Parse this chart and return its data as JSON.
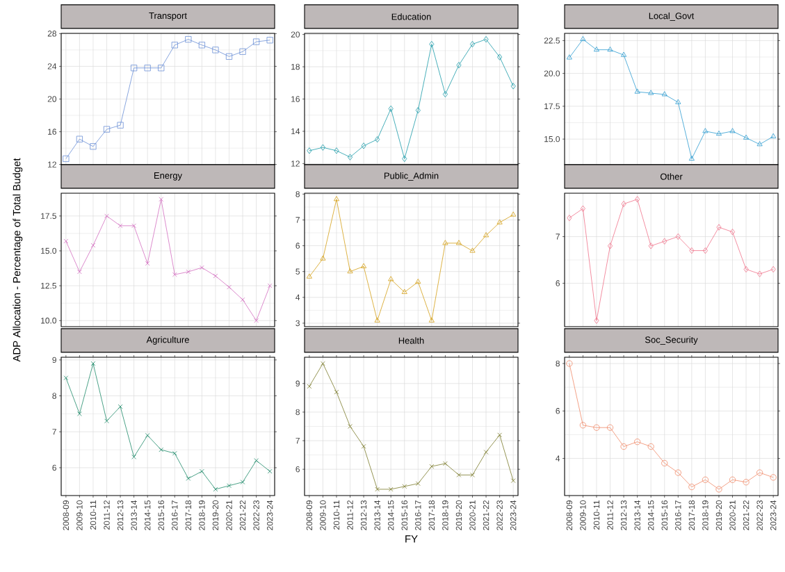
{
  "chart_data": [
    {
      "type": "line",
      "title": "Transport",
      "categories": [
        "2008-09",
        "2009-10",
        "2010-11",
        "2011-12",
        "2012-13",
        "2013-14",
        "2014-15",
        "2015-16",
        "2016-17",
        "2017-18",
        "2018-19",
        "2019-20",
        "2020-21",
        "2021-22",
        "2022-23",
        "2023-24"
      ],
      "values": [
        12.7,
        15.1,
        14.2,
        16.3,
        16.8,
        23.8,
        23.8,
        23.8,
        26.6,
        27.3,
        26.6,
        26.0,
        25.2,
        25.8,
        27.0,
        27.2
      ],
      "color": "#6b8fd6",
      "marker": "square",
      "ylim": [
        11.97,
        28.03
      ],
      "yticks": [
        12,
        16,
        20,
        24,
        28
      ],
      "grid": true,
      "tick_labels": "y"
    },
    {
      "type": "line",
      "title": "Education",
      "categories": [
        "2008-09",
        "2009-10",
        "2010-11",
        "2011-12",
        "2012-13",
        "2013-14",
        "2014-15",
        "2015-16",
        "2016-17",
        "2017-18",
        "2018-19",
        "2019-20",
        "2020-21",
        "2021-22",
        "2022-23",
        "2023-24"
      ],
      "values": [
        12.8,
        13.0,
        12.8,
        12.4,
        13.1,
        13.5,
        15.4,
        12.3,
        15.3,
        19.4,
        16.3,
        18.1,
        19.4,
        19.7,
        18.6,
        16.8
      ],
      "color": "#1a9ba8",
      "marker": "diamond",
      "ylim": [
        11.93,
        20.07
      ],
      "yticks": [
        12,
        14,
        16,
        18,
        20
      ],
      "grid": true,
      "tick_labels": "y"
    },
    {
      "type": "line",
      "title": "Local_Govt",
      "categories": [
        "2008-09",
        "2009-10",
        "2010-11",
        "2011-12",
        "2012-13",
        "2013-14",
        "2014-15",
        "2015-16",
        "2016-17",
        "2017-18",
        "2018-19",
        "2019-20",
        "2020-21",
        "2021-22",
        "2022-23",
        "2023-24"
      ],
      "values": [
        21.2,
        22.6,
        21.8,
        21.8,
        21.4,
        18.6,
        18.5,
        18.4,
        17.8,
        13.5,
        15.6,
        15.4,
        15.6,
        15.1,
        14.6,
        15.2
      ],
      "color": "#2d9cd0",
      "marker": "triangle",
      "ylim": [
        13.05,
        23.05
      ],
      "yticks": [
        {
          "value": 15,
          "label": "15.0"
        },
        17.5,
        {
          "value": 20,
          "label": "20.0"
        },
        22.5
      ],
      "grid": true,
      "tick_labels": "y"
    },
    {
      "type": "line",
      "title": "Energy",
      "ylabel": "ADP Allocation - Percentage of Total Budget",
      "categories": [
        "2008-09",
        "2009-10",
        "2010-11",
        "2011-12",
        "2012-13",
        "2013-14",
        "2014-15",
        "2015-16",
        "2016-17",
        "2017-18",
        "2018-19",
        "2019-20",
        "2020-21",
        "2021-22",
        "2022-23",
        "2023-24"
      ],
      "values": [
        15.7,
        13.5,
        15.4,
        17.5,
        16.8,
        16.8,
        14.1,
        18.7,
        13.3,
        13.5,
        13.8,
        13.2,
        12.4,
        11.5,
        10.0,
        12.5
      ],
      "color": "#d36fc0",
      "marker": "cross",
      "ylim": [
        9.565,
        19.135
      ],
      "yticks": [
        {
          "value": 10,
          "label": "10.0"
        },
        12.5,
        {
          "value": 15,
          "label": "15.0"
        },
        17.5
      ],
      "grid": true,
      "tick_labels": "y"
    },
    {
      "type": "line",
      "title": "Public_Admin",
      "categories": [
        "2008-09",
        "2009-10",
        "2010-11",
        "2011-12",
        "2012-13",
        "2013-14",
        "2014-15",
        "2015-16",
        "2016-17",
        "2017-18",
        "2018-19",
        "2019-20",
        "2020-21",
        "2021-22",
        "2022-23",
        "2023-24"
      ],
      "values": [
        4.8,
        5.5,
        7.8,
        5.0,
        5.2,
        3.1,
        4.7,
        4.2,
        4.6,
        3.1,
        6.1,
        6.1,
        5.8,
        6.4,
        6.9,
        7.2
      ],
      "color": "#d4a017",
      "marker": "triangle",
      "ylim": [
        2.865,
        8.035
      ],
      "yticks": [
        3,
        4,
        5,
        6,
        7,
        8
      ],
      "grid": true,
      "tick_labels": "y"
    },
    {
      "type": "line",
      "title": "Other",
      "categories": [
        "2008-09",
        "2009-10",
        "2010-11",
        "2011-12",
        "2012-13",
        "2013-14",
        "2014-15",
        "2015-16",
        "2016-17",
        "2017-18",
        "2018-19",
        "2019-20",
        "2020-21",
        "2021-22",
        "2022-23",
        "2023-24"
      ],
      "values": [
        7.4,
        7.6,
        5.2,
        6.8,
        7.7,
        7.8,
        6.8,
        6.9,
        7.0,
        6.7,
        6.7,
        7.2,
        7.1,
        6.3,
        6.2,
        6.3
      ],
      "color": "#f0728a",
      "marker": "diamond",
      "ylim": [
        5.07,
        7.93
      ],
      "yticks": [
        6,
        7
      ],
      "grid": true,
      "tick_labels": "y"
    },
    {
      "type": "line",
      "title": "Agriculture",
      "categories": [
        "2008-09",
        "2009-10",
        "2010-11",
        "2011-12",
        "2012-13",
        "2013-14",
        "2014-15",
        "2015-16",
        "2016-17",
        "2017-18",
        "2018-19",
        "2019-20",
        "2020-21",
        "2021-22",
        "2022-23",
        "2023-24"
      ],
      "values": [
        8.5,
        7.5,
        8.9,
        7.3,
        7.7,
        6.3,
        6.9,
        6.5,
        6.4,
        5.7,
        5.9,
        5.4,
        5.5,
        5.6,
        6.2,
        5.9
      ],
      "color": "#1e8a6a",
      "marker": "cross",
      "ylim": [
        5.225,
        9.075
      ],
      "yticks": [
        6,
        7,
        8,
        9
      ],
      "grid": true
    },
    {
      "type": "line",
      "title": "Health",
      "xlabel": "FY",
      "categories": [
        "2008-09",
        "2009-10",
        "2010-11",
        "2011-12",
        "2012-13",
        "2013-14",
        "2014-15",
        "2015-16",
        "2016-17",
        "2017-18",
        "2018-19",
        "2019-20",
        "2020-21",
        "2021-22",
        "2022-23",
        "2023-24"
      ],
      "values": [
        8.9,
        9.7,
        8.7,
        7.5,
        6.8,
        5.3,
        5.3,
        5.4,
        5.5,
        6.1,
        6.2,
        5.8,
        5.8,
        6.6,
        7.2,
        5.6
      ],
      "color": "#7a7a2a",
      "marker": "cross",
      "ylim": [
        5.08,
        9.92
      ],
      "yticks": [
        6,
        7,
        8,
        9
      ],
      "grid": true
    },
    {
      "type": "line",
      "title": "Soc_Security",
      "categories": [
        "2008-09",
        "2009-10",
        "2010-11",
        "2011-12",
        "2012-13",
        "2013-14",
        "2014-15",
        "2015-16",
        "2016-17",
        "2017-18",
        "2018-19",
        "2019-20",
        "2020-21",
        "2021-22",
        "2022-23",
        "2023-24"
      ],
      "values": [
        8.0,
        5.4,
        5.3,
        5.3,
        4.5,
        4.7,
        4.5,
        3.8,
        3.4,
        2.8,
        3.1,
        2.7,
        3.1,
        3.0,
        3.4,
        3.2
      ],
      "color": "#f08a6a",
      "marker": "circle",
      "ylim": [
        2.435,
        8.265
      ],
      "yticks": [
        4,
        6,
        8
      ],
      "grid": true
    }
  ]
}
